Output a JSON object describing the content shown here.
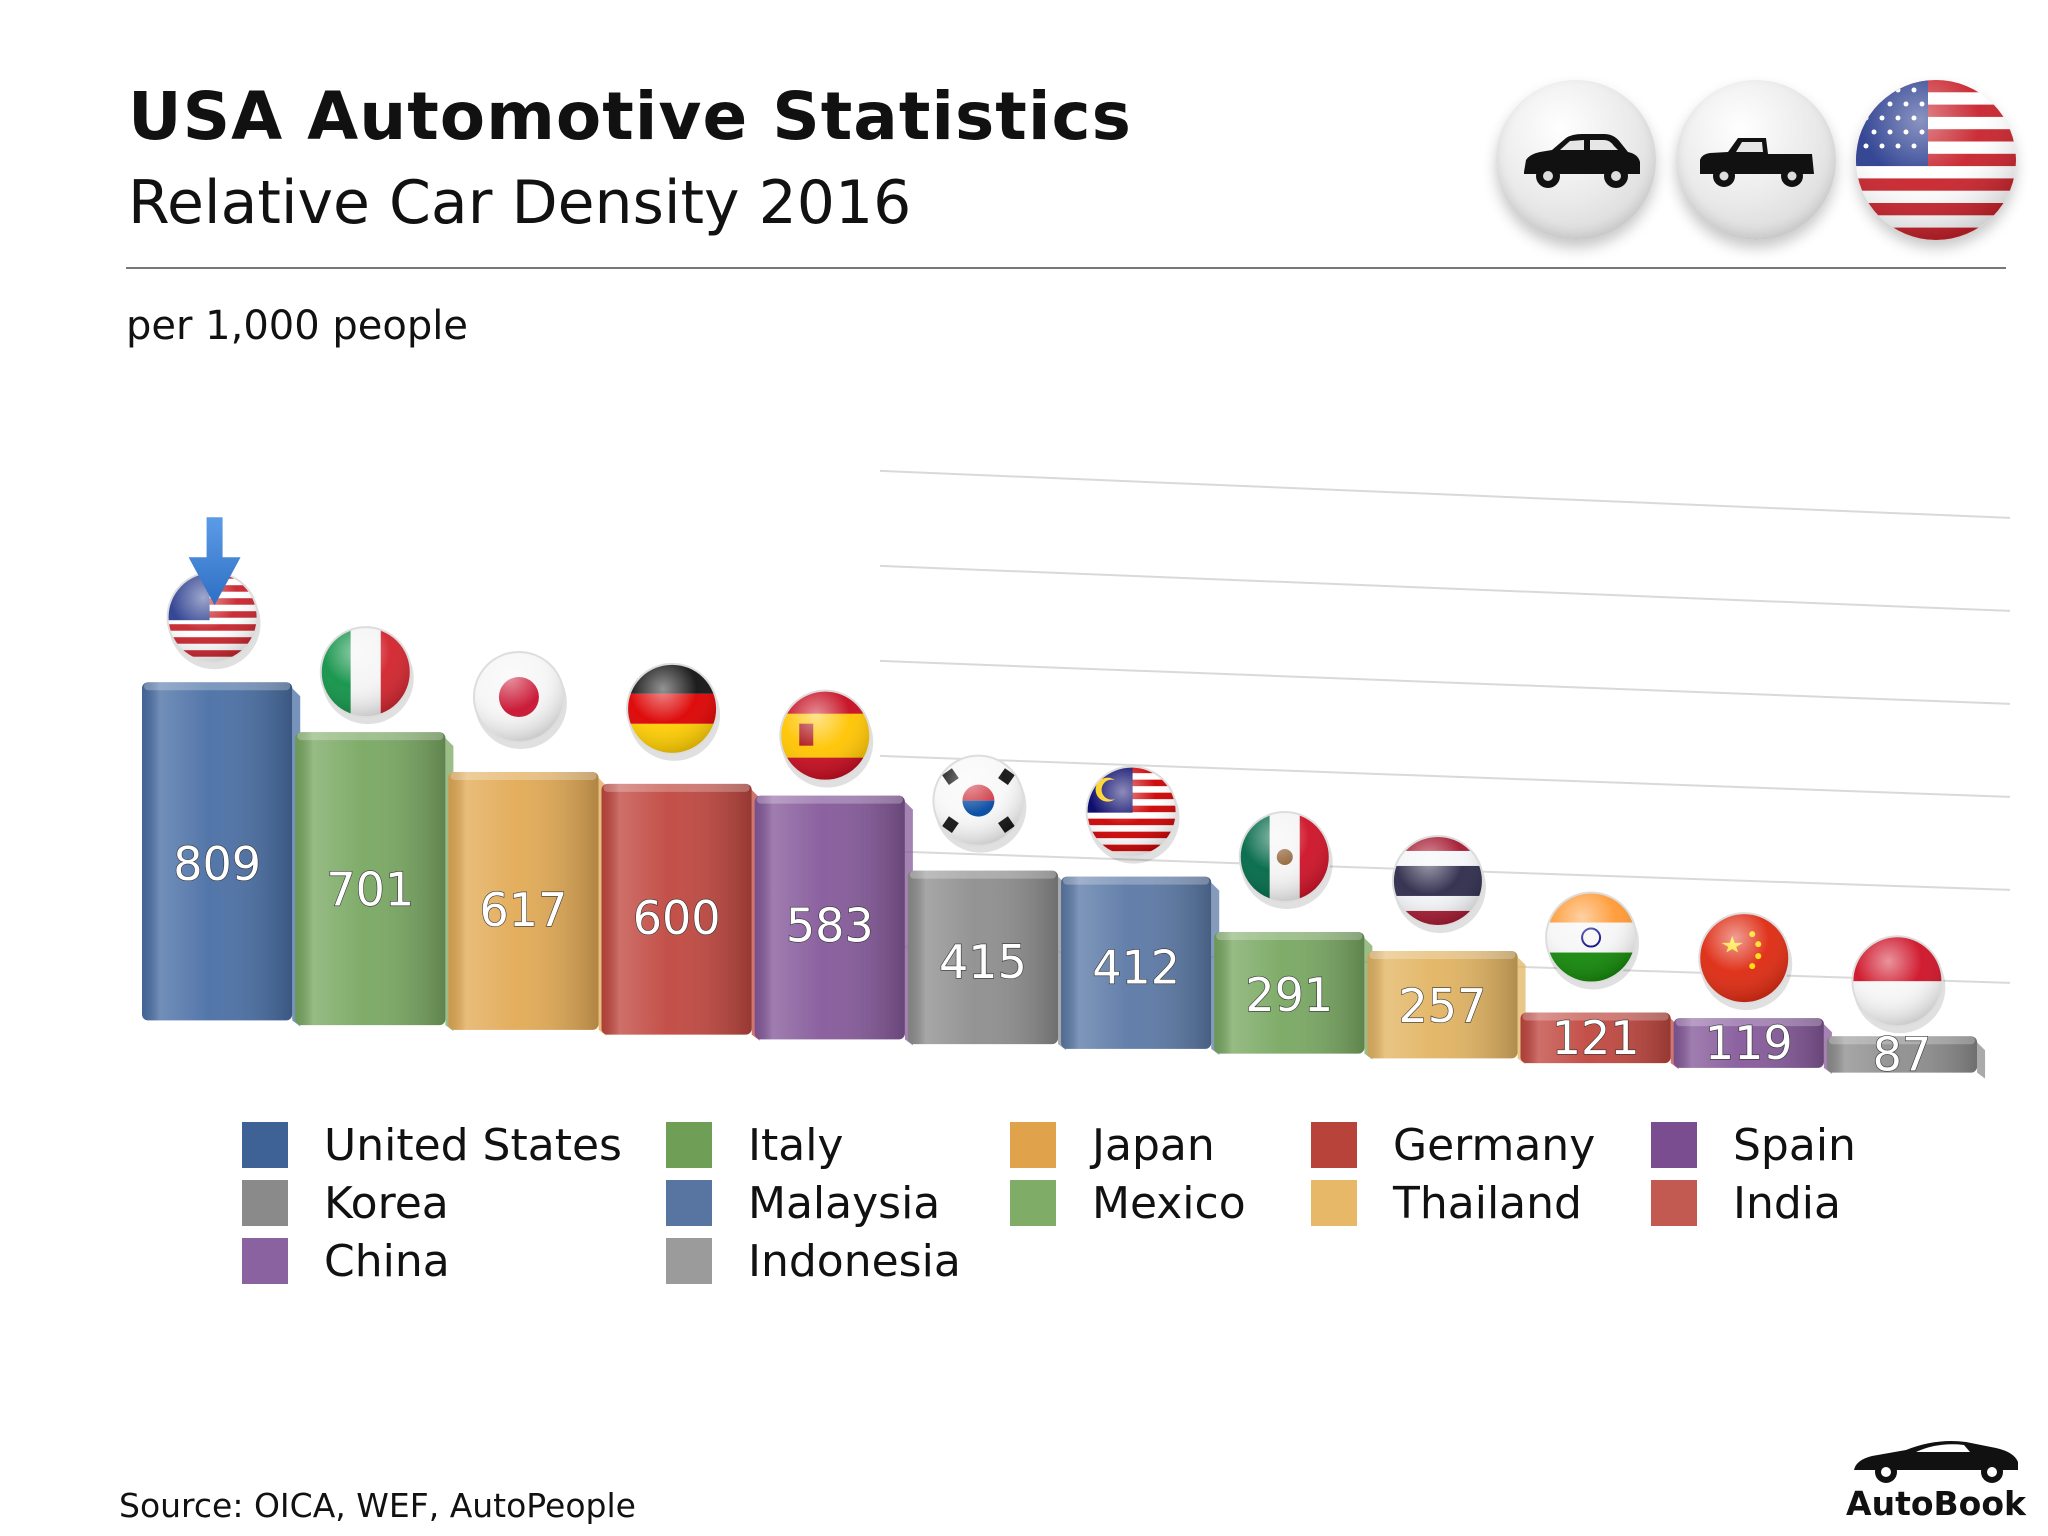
{
  "header": {
    "title": "USA Automotive Statistics",
    "subtitle": "Relative Car Density 2016"
  },
  "icons": [
    "car-icon",
    "pickup-truck-icon",
    "usa-flag-icon"
  ],
  "chart_data": {
    "type": "bar",
    "title": "Relative Car Density 2016",
    "ylabel": "per 1,000 people",
    "xlabel": "",
    "grid": true,
    "legend": "bottom",
    "categories": [
      "United States",
      "Italy",
      "Japan",
      "Germany",
      "Spain",
      "Korea",
      "Malaysia",
      "Mexico",
      "Thailand",
      "India",
      "China",
      "Indonesia"
    ],
    "values": [
      809,
      701,
      617,
      600,
      583,
      415,
      412,
      291,
      257,
      121,
      119,
      87
    ],
    "colors": [
      "#4a6fa5",
      "#79a862",
      "#e2aa55",
      "#c0473f",
      "#85599a",
      "#8e8e8e",
      "#5b79a6",
      "#79a862",
      "#e2b462",
      "#c0473f",
      "#85599a",
      "#8e8e8e"
    ],
    "highlight": "United States",
    "ylim": [
      0,
      1000
    ]
  },
  "legend": {
    "items": [
      {
        "label": "United States",
        "color": "#3f6296"
      },
      {
        "label": "Italy",
        "color": "#6f9e57"
      },
      {
        "label": "Japan",
        "color": "#e0a34b"
      },
      {
        "label": "Germany",
        "color": "#b7433b"
      },
      {
        "label": "Spain",
        "color": "#7a4c90"
      },
      {
        "label": "Korea",
        "color": "#8a8a8a"
      },
      {
        "label": "Malaysia",
        "color": "#5874a1"
      },
      {
        "label": "Mexico",
        "color": "#7fac66"
      },
      {
        "label": "Thailand",
        "color": "#e8b869"
      },
      {
        "label": "India",
        "color": "#c25a52"
      },
      {
        "label": "China",
        "color": "#8a629f"
      },
      {
        "label": "Indonesia",
        "color": "#9b9b9b"
      }
    ]
  },
  "footer": {
    "source": "Source:  OICA, WEF, AutoPeople",
    "brand": "AutoBook"
  }
}
